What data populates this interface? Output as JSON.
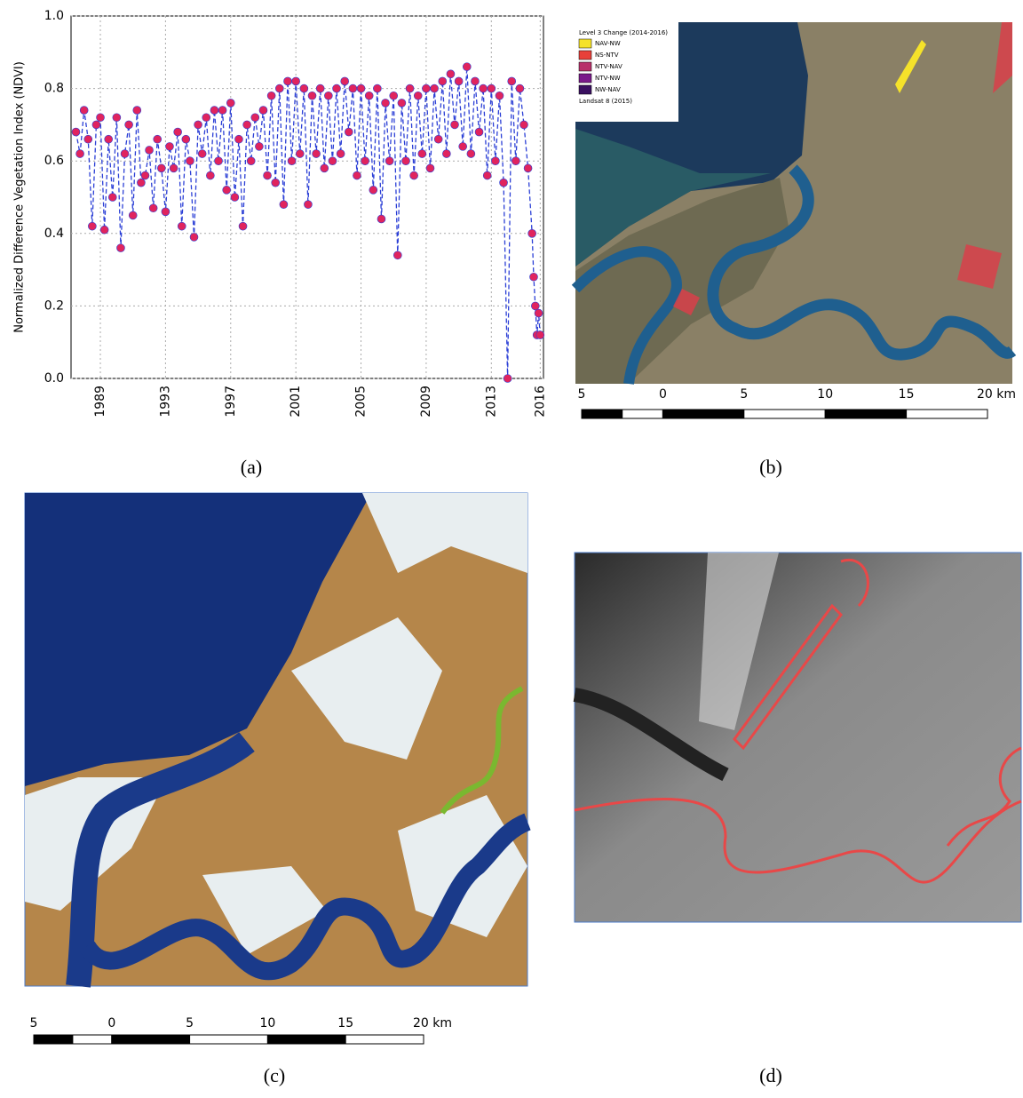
{
  "chart_data": {
    "type": "line",
    "y_label": "Normalized Difference Vegetation Index (NDVI)",
    "caption": "(a)",
    "x": [
      1987.5,
      1987.75,
      1988,
      1988.25,
      1988.5,
      1988.75,
      1989,
      1989.25,
      1989.5,
      1989.75,
      1990,
      1990.25,
      1990.5,
      1990.75,
      1991,
      1991.25,
      1991.5,
      1991.75,
      1992,
      1992.25,
      1992.5,
      1992.75,
      1993,
      1993.25,
      1993.5,
      1993.75,
      1994,
      1994.25,
      1994.5,
      1994.75,
      1995,
      1995.25,
      1995.5,
      1995.75,
      1996,
      1996.25,
      1996.5,
      1996.75,
      1997,
      1997.25,
      1997.5,
      1997.75,
      1998,
      1998.25,
      1998.5,
      1998.75,
      1999,
      1999.25,
      1999.5,
      1999.75,
      2000,
      2000.25,
      2000.5,
      2000.75,
      2001,
      2001.25,
      2001.5,
      2001.75,
      2002,
      2002.25,
      2002.5,
      2002.75,
      2003,
      2003.25,
      2003.5,
      2003.75,
      2004,
      2004.25,
      2004.5,
      2004.75,
      2005,
      2005.25,
      2005.5,
      2005.75,
      2006,
      2006.25,
      2006.5,
      2006.75,
      2007,
      2007.25,
      2007.5,
      2007.75,
      2008,
      2008.25,
      2008.5,
      2008.75,
      2009,
      2009.25,
      2009.5,
      2009.75,
      2010,
      2010.25,
      2010.5,
      2010.75,
      2011,
      2011.25,
      2011.5,
      2011.75,
      2012,
      2012.25,
      2012.5,
      2012.75,
      2013,
      2013.25,
      2013.5,
      2013.75,
      2014,
      2014.25,
      2014.5,
      2014.75,
      2015,
      2015.25,
      2015.5,
      2015.6,
      2015.7,
      2015.8,
      2015.9,
      2016
    ],
    "series": [
      {
        "color": "#2b3fd6",
        "marker_color": "#e0245e",
        "values": [
          0.68,
          0.62,
          0.74,
          0.66,
          0.42,
          0.7,
          0.72,
          0.41,
          0.66,
          0.5,
          0.72,
          0.36,
          0.62,
          0.7,
          0.45,
          0.74,
          0.54,
          0.56,
          0.63,
          0.47,
          0.66,
          0.58,
          0.46,
          0.64,
          0.58,
          0.68,
          0.42,
          0.66,
          0.6,
          0.39,
          0.7,
          0.62,
          0.72,
          0.56,
          0.74,
          0.6,
          0.74,
          0.52,
          0.76,
          0.5,
          0.66,
          0.42,
          0.7,
          0.6,
          0.72,
          0.64,
          0.74,
          0.56,
          0.78,
          0.54,
          0.8,
          0.48,
          0.82,
          0.6,
          0.82,
          0.62,
          0.8,
          0.48,
          0.78,
          0.62,
          0.8,
          0.58,
          0.78,
          0.6,
          0.8,
          0.62,
          0.82,
          0.68,
          0.8,
          0.56,
          0.8,
          0.6,
          0.78,
          0.52,
          0.8,
          0.44,
          0.76,
          0.6,
          0.78,
          0.34,
          0.76,
          0.6,
          0.8,
          0.56,
          0.78,
          0.62,
          0.8,
          0.58,
          0.8,
          0.66,
          0.82,
          0.62,
          0.84,
          0.7,
          0.82,
          0.64,
          0.86,
          0.62,
          0.82,
          0.68,
          0.8,
          0.56,
          0.8,
          0.6,
          0.78,
          0.54,
          0.0,
          0.82,
          0.6,
          0.8,
          0.7,
          0.58,
          0.4,
          0.28,
          0.2,
          0.12,
          0.18,
          0.12
        ]
      }
    ],
    "xlim": [
      1987.2,
      2016.2
    ],
    "ylim": [
      0,
      1
    ],
    "xticks": [
      1989,
      1993,
      1997,
      2001,
      2005,
      2009,
      2013,
      2016
    ],
    "yticks": [
      {
        "value": 0,
        "label": "0.0"
      },
      0.2,
      0.4,
      0.6,
      0.8,
      {
        "value": 1,
        "label": "1.0"
      }
    ],
    "grid": true
  },
  "panels": {
    "b": {
      "legend_title": "Level 3 Change (2014-2016)",
      "legend": [
        {
          "label": "NAV-NW",
          "color": "#f5e22a"
        },
        {
          "label": "NS-NTV",
          "color": "#e8403a"
        },
        {
          "label": "NTV-NAV",
          "color": "#b8306a"
        },
        {
          "label": "NTV-NW",
          "color": "#7a1a8a"
        },
        {
          "label": "NW-NAV",
          "color": "#3a1060"
        }
      ],
      "legend_note": "Landsat 8 (2015)",
      "scale_labels": [
        "5",
        "0",
        "5",
        "10",
        "15",
        "20 km"
      ],
      "caption": "(b)"
    },
    "c": {
      "scale_labels": [
        "5",
        "0",
        "5",
        "10",
        "15",
        "20 km"
      ],
      "caption": "(c)"
    },
    "d": {
      "caption": "(d)"
    }
  }
}
